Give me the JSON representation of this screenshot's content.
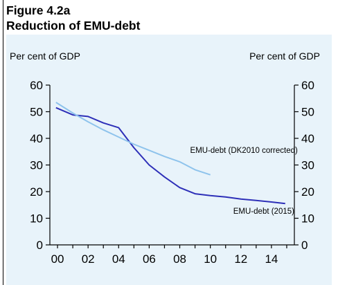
{
  "figure": {
    "label": "Figure 4.2a",
    "title": "Reduction of EMU-debt"
  },
  "colors": {
    "background": "#e8f3fa",
    "series_2015": "#2d2fb8",
    "series_dk2010": "#8ec3ec",
    "axis": "#000000"
  },
  "chart_data": {
    "type": "line",
    "title": "Reduction of EMU-debt",
    "ylabel_left": "Per cent of GDP",
    "ylabel_right": "Per cent of GDP",
    "xlim": [
      -0.5,
      15.5
    ],
    "ylim": [
      0,
      60
    ],
    "yticks": [
      0,
      10,
      20,
      30,
      40,
      50,
      60
    ],
    "xticks": [
      {
        "value": 0,
        "label": "00"
      },
      {
        "value": 2,
        "label": "02"
      },
      {
        "value": 4,
        "label": "04"
      },
      {
        "value": 6,
        "label": "06"
      },
      {
        "value": 8,
        "label": "08"
      },
      {
        "value": 10,
        "label": "10"
      },
      {
        "value": 12,
        "label": "12"
      },
      {
        "value": 14,
        "label": "14"
      }
    ],
    "grid": false,
    "series": [
      {
        "name": "EMU-debt (2015)",
        "color": "#2d2fb8",
        "x": [
          -0.1,
          1,
          2,
          3,
          4,
          5,
          6,
          7,
          8,
          9,
          10,
          11,
          12,
          13,
          14,
          14.9
        ],
        "values": [
          51.5,
          48.8,
          48.2,
          45.8,
          44.0,
          36.5,
          30.0,
          25.5,
          21.5,
          19.2,
          18.5,
          18.0,
          17.2,
          16.7,
          16.1,
          15.5
        ],
        "label_anchor": {
          "x": 13.5,
          "y": 11.7
        }
      },
      {
        "name": "EMU-debt (DK2010 corrected)",
        "color": "#8ec3ec",
        "x": [
          -0.1,
          1,
          2,
          3,
          4,
          5,
          6,
          7,
          8,
          9,
          10
        ],
        "values": [
          53.5,
          49.5,
          46.2,
          43.2,
          40.5,
          37.8,
          35.5,
          33.2,
          31.2,
          28.2,
          26.3
        ],
        "label_anchor": {
          "x": 12.2,
          "y": 34.5
        }
      }
    ]
  }
}
